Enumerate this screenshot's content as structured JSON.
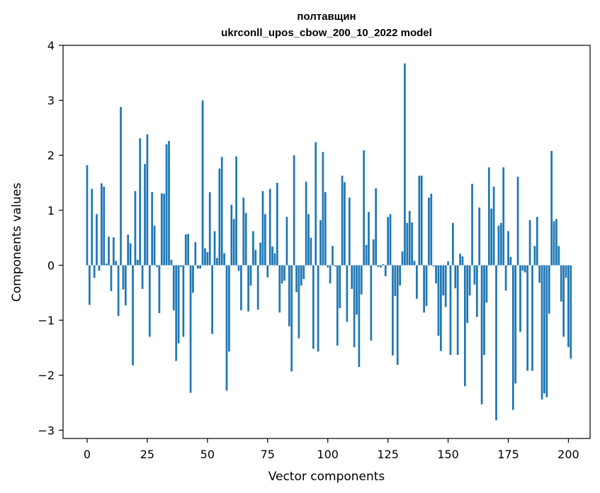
{
  "chart_data": {
    "type": "bar",
    "title": "полтавщин",
    "subtitle": "ukrconll_upos_cbow_200_10_2022 model",
    "xlabel": "Vector components",
    "ylabel": "Components values",
    "xlim": [
      -10,
      209
    ],
    "ylim": [
      -3.15,
      4
    ],
    "xticks": [
      0,
      25,
      50,
      75,
      100,
      125,
      150,
      175,
      200
    ],
    "xtick_labels": [
      "0",
      "25",
      "50",
      "75",
      "100",
      "125",
      "150",
      "175",
      "200"
    ],
    "yticks": [
      -3,
      -2,
      -1,
      0,
      1,
      2,
      3,
      4
    ],
    "ytick_labels": [
      "−3",
      "−2",
      "−1",
      "0",
      "1",
      "2",
      "3",
      "4"
    ],
    "grid": false,
    "bar_color": "#1f77b4",
    "values": [
      1.82,
      -0.72,
      1.39,
      -0.23,
      0.93,
      -0.1,
      1.49,
      1.43,
      0.03,
      0.52,
      -0.47,
      0.51,
      0.08,
      -0.92,
      2.88,
      -0.44,
      -0.73,
      0.56,
      0.4,
      -1.82,
      1.35,
      0.1,
      2.31,
      -0.43,
      1.84,
      2.38,
      -1.3,
      1.33,
      0.72,
      -0.03,
      -0.87,
      1.31,
      1.3,
      2.2,
      2.26,
      0.1,
      -0.82,
      -1.74,
      -1.42,
      -0.03,
      -1.3,
      0.56,
      0.57,
      -2.32,
      -0.5,
      0.42,
      -0.06,
      -0.06,
      3.0,
      0.31,
      0.24,
      1.33,
      -1.25,
      0.62,
      0.13,
      1.76,
      1.97,
      0.22,
      -2.28,
      -1.57,
      1.1,
      0.84,
      1.98,
      -0.1,
      -0.82,
      1.23,
      0.95,
      -0.84,
      -0.37,
      0.62,
      0.28,
      -0.81,
      0.41,
      1.35,
      0.93,
      -0.22,
      1.39,
      0.34,
      0.22,
      1.5,
      -0.86,
      -0.33,
      -0.28,
      0.88,
      -1.11,
      -1.93,
      2.0,
      -0.49,
      -1.33,
      -0.37,
      -0.25,
      1.52,
      0.93,
      0.5,
      -1.52,
      2.24,
      -1.57,
      0.82,
      2.06,
      1.33,
      -0.04,
      -0.33,
      0.35,
      -0.02,
      -1.46,
      -0.78,
      1.63,
      1.51,
      -1.03,
      1.23,
      -0.43,
      -1.49,
      -0.9,
      -1.85,
      -0.53,
      2.09,
      0.37,
      0.97,
      -1.37,
      0.47,
      1.4,
      -0.03,
      -0.04,
      0.02,
      -0.2,
      0.88,
      0.93,
      -1.64,
      -0.56,
      -1.81,
      -0.37,
      0.25,
      3.67,
      0.77,
      0.99,
      0.78,
      0.08,
      -0.61,
      1.63,
      1.63,
      -0.86,
      -0.74,
      1.23,
      1.3,
      -0.02,
      -0.33,
      -1.28,
      -1.56,
      -0.55,
      -0.76,
      0.07,
      -1.63,
      0.77,
      -0.42,
      -1.63,
      0.21,
      0.16,
      -2.2,
      -1.05,
      -0.55,
      1.48,
      -0.35,
      -0.94,
      1.05,
      -2.53,
      -1.63,
      -0.68,
      1.78,
      1.03,
      1.43,
      -2.82,
      0.72,
      0.77,
      1.78,
      -0.46,
      0.62,
      0.15,
      -2.63,
      -2.15,
      1.61,
      -1.21,
      -0.1,
      -0.13,
      -1.92,
      0.82,
      -1.92,
      0.35,
      0.88,
      -0.32,
      -2.44,
      -2.33,
      -2.4,
      -0.88,
      2.08,
      0.8,
      0.84,
      0.35,
      -0.66,
      -1.3,
      -0.23,
      -1.49,
      -1.7
    ]
  }
}
